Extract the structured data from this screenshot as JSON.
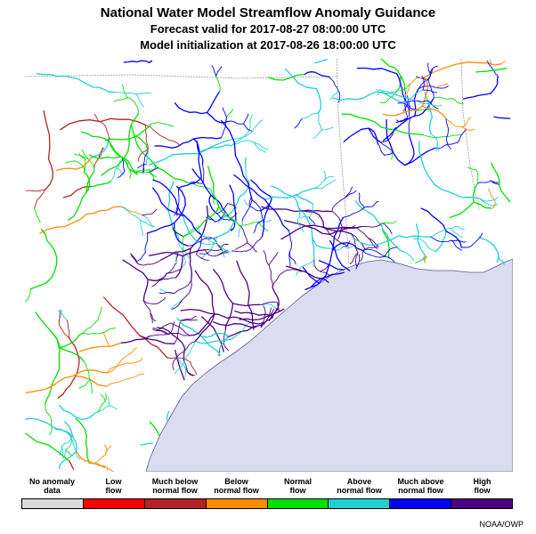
{
  "title": {
    "line1": "National Water Model Streamflow Anomaly Guidance",
    "line2": "Forecast valid for 2017-08-27 08:00:00 UTC",
    "line3": "Model initialization at 2017-08-26 18:00:00 UTC"
  },
  "legend": [
    {
      "l1": "No anomaly",
      "l2": "data",
      "color": "#d9d9d9"
    },
    {
      "l1": "Low",
      "l2": "flow",
      "color": "#ff0000"
    },
    {
      "l1": "Much below",
      "l2": "normal flow",
      "color": "#b22222"
    },
    {
      "l1": "Below",
      "l2": "normal flow",
      "color": "#ff8c00"
    },
    {
      "l1": "Normal",
      "l2": "flow",
      "color": "#00e000"
    },
    {
      "l1": "Above",
      "l2": "normal flow",
      "color": "#20d0d0"
    },
    {
      "l1": "Much above",
      "l2": "normal flow",
      "color": "#0000ff"
    },
    {
      "l1": "High",
      "l2": "flow",
      "color": "#4b0082"
    }
  ],
  "credit": "NOAA/OWP",
  "map_colors": {
    "water": "#dcdcf0",
    "border": "#9a9a9a"
  }
}
